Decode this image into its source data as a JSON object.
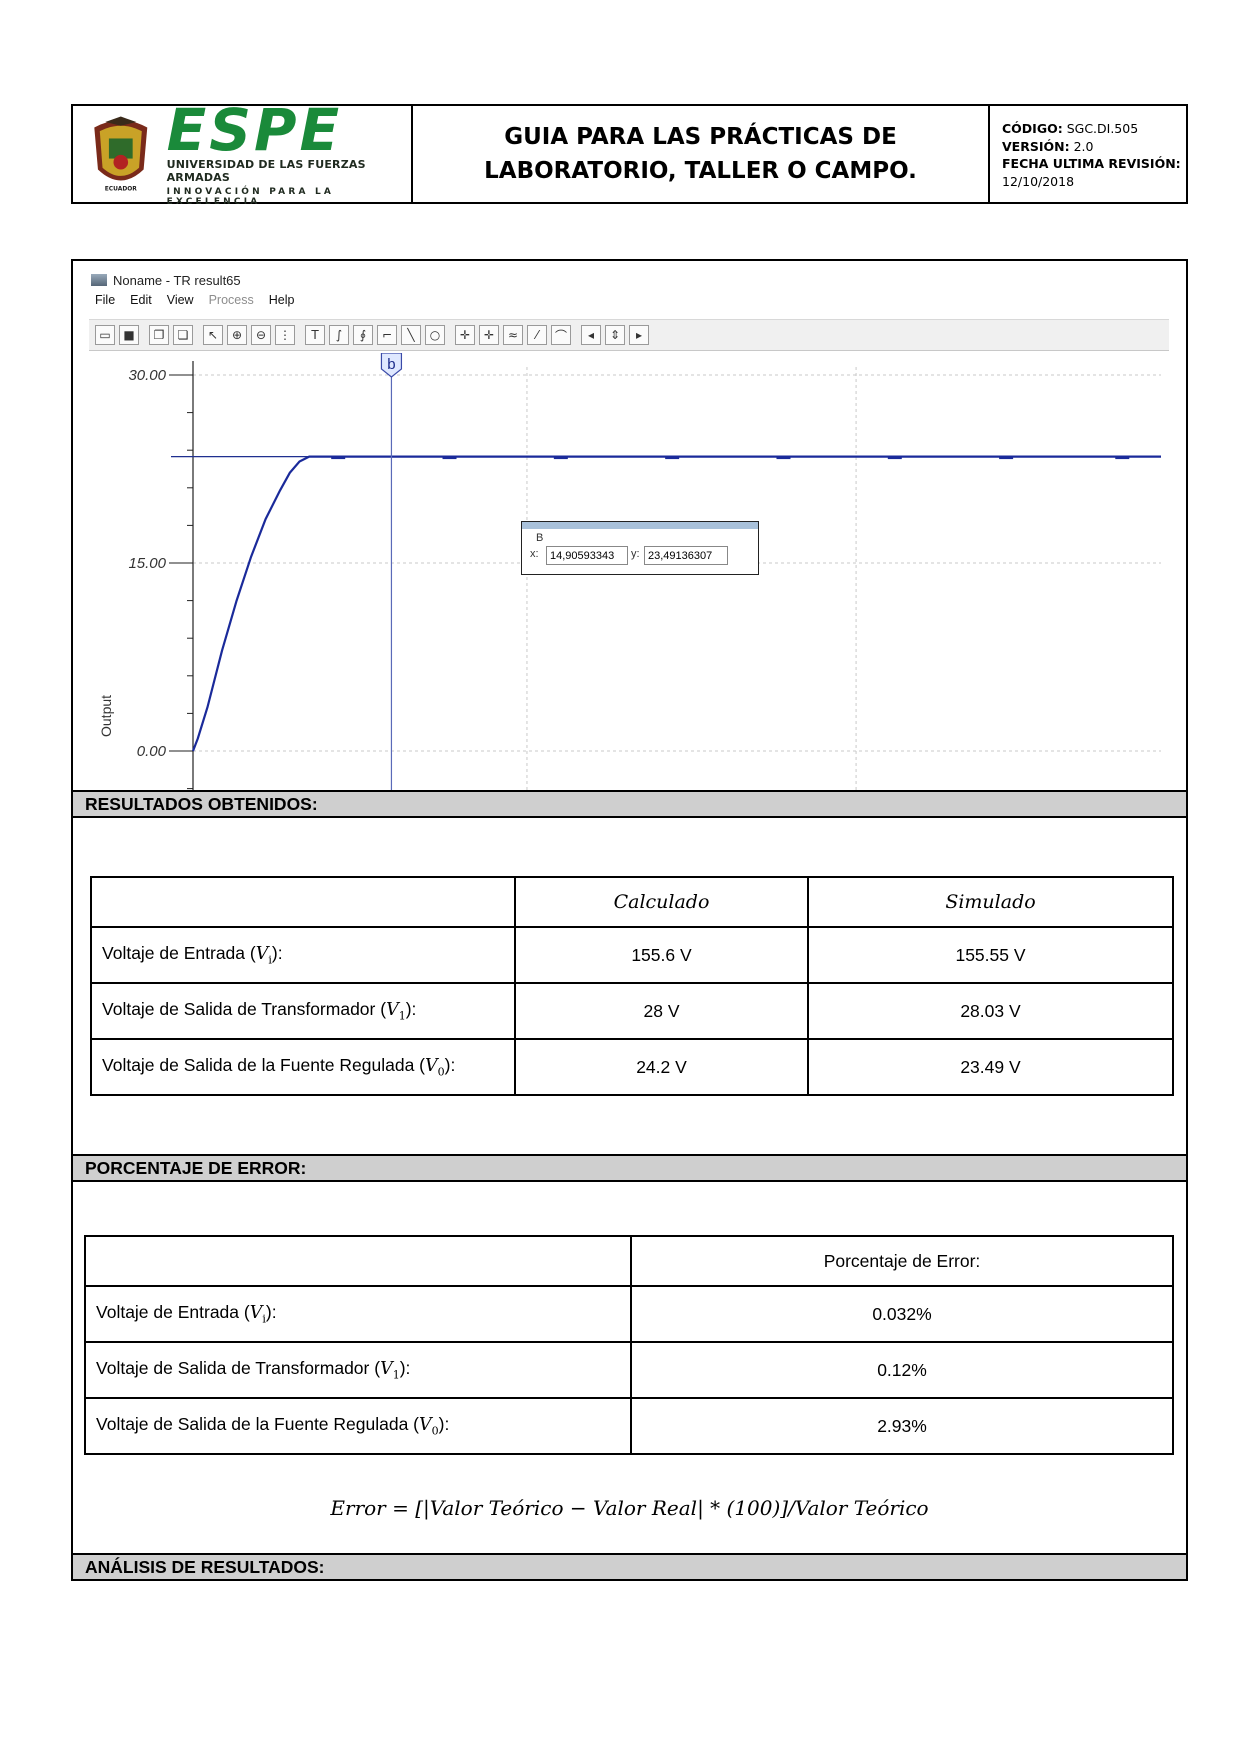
{
  "header": {
    "logo": {
      "word": "ESPE",
      "line1": "UNIVERSIDAD DE LAS FUERZAS ARMADAS",
      "line2": "INNOVACIÓN PARA LA EXCELENCIA",
      "shield_text": "ECUADOR"
    },
    "title_line1": "GUIA PARA LAS PRÁCTICAS DE",
    "title_line2": "LABORATORIO, TALLER O CAMPO.",
    "codigo_label": "CÓDIGO:",
    "codigo_value": "SGC.DI.505",
    "version_label": "VERSIÓN:",
    "version_value": "2.0",
    "fecha_label": "FECHA ULTIMA REVISIÓN:",
    "fecha_value": "12/10/2018"
  },
  "app": {
    "window_title": "Noname - TR result65",
    "menu": [
      "File",
      "Edit",
      "View",
      "Process",
      "Help"
    ],
    "cursor_marker": "b",
    "cursor_box": {
      "label": "B",
      "x_label": "x:",
      "x_value": "14,90593343",
      "y_label": "y:",
      "y_value": "23,49136307"
    }
  },
  "chart_data": {
    "type": "line",
    "ylabel": "Output",
    "xlabel": "",
    "y_ticks": [
      "0.00",
      "15.00",
      "30.00"
    ],
    "ylim": [
      -4.5,
      31.5
    ],
    "xlim": [
      0,
      100
    ],
    "grid": true,
    "cursor_x": 20.5,
    "series": [
      {
        "x": [
          0,
          0.5,
          1.5,
          3,
          4.5,
          6,
          7.5,
          9,
          10,
          11,
          12,
          14,
          20,
          30,
          40,
          50,
          60,
          70,
          80,
          90,
          100
        ],
        "y": [
          0,
          1,
          3.5,
          8,
          12,
          15.5,
          18.5,
          20.8,
          22.2,
          23.1,
          23.49,
          23.49,
          23.49,
          23.49,
          23.49,
          23.49,
          23.49,
          23.49,
          23.49,
          23.49,
          23.49
        ]
      }
    ],
    "reference_level": 23.49
  },
  "sections": {
    "resultados": "RESULTADOS OBTENIDOS:",
    "porcentaje": "PORCENTAJE DE ERROR:",
    "analisis": "ANÁLISIS DE RESULTADOS:"
  },
  "results_table": {
    "col_calc": "Calculado",
    "col_sim": "Simulado",
    "rows": [
      {
        "label": "Voltaje de Entrada (",
        "var": "V",
        "sub": "i",
        "end": "):",
        "calc": "155.6 V",
        "sim": "155.55 V"
      },
      {
        "label": "Voltaje de Salida de Transformador (",
        "var": "V",
        "sub": "1",
        "end": "):",
        "calc": "28 V",
        "sim": "28.03 V"
      },
      {
        "label": "Voltaje de Salida de la Fuente Regulada (",
        "var": "V",
        "sub": "0",
        "end": "):",
        "calc": "24.2 V",
        "sim": "23.49 V"
      }
    ]
  },
  "error_table": {
    "col_header": "Porcentaje de Error:",
    "rows": [
      {
        "label": "Voltaje de Entrada (",
        "var": "V",
        "sub": "i",
        "end": "):",
        "value": "0.032%"
      },
      {
        "label": "Voltaje de Salida de Transformador (",
        "var": "V",
        "sub": "1",
        "end": "):",
        "value": "0.12%"
      },
      {
        "label": "Voltaje de Salida de la Fuente Regulada (",
        "var": "V",
        "sub": "0",
        "end": "):",
        "value": "2.93%"
      }
    ]
  },
  "formula": "Error  = [|Valor Teórico  − Valor Real| * (100)]/Valor Teórico"
}
